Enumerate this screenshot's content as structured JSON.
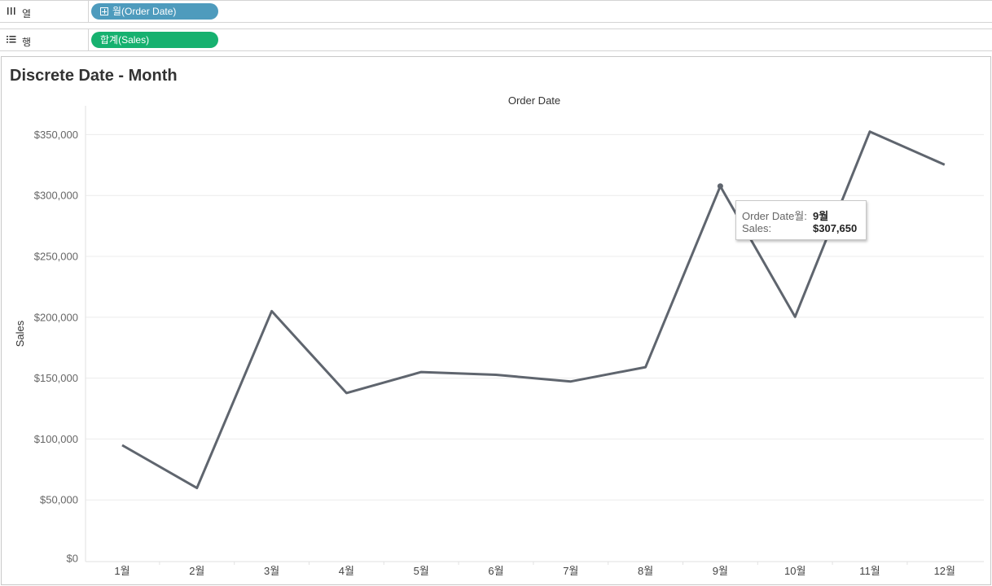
{
  "shelves": {
    "columns": {
      "label": "열",
      "icon": "columns-icon",
      "pill_text": "월(Order Date)",
      "pill_icon": "plus-box-icon",
      "pill_color": "#4e9bbd"
    },
    "rows": {
      "label": "행",
      "icon": "rows-icon",
      "pill_text": "합계(Sales)",
      "pill_color": "#16b16f"
    }
  },
  "colors": {
    "line": "#5f656e",
    "gridline": "#ececec",
    "axis_text": "#666666"
  },
  "tooltip": {
    "row1_label": "Order Date월:",
    "row1_value": "9월",
    "row2_label": "Sales:",
    "row2_value": "$307,650"
  },
  "chart_data": {
    "type": "line",
    "title": "Discrete Date - Month",
    "top_axis_label": "Order Date",
    "xlabel": "",
    "ylabel": "Sales",
    "categories": [
      "1월",
      "2월",
      "3월",
      "4월",
      "5월",
      "6월",
      "7월",
      "8월",
      "9월",
      "10월",
      "11월",
      "12월"
    ],
    "series": [
      {
        "values": [
          94925,
          59751,
          205005,
          137762,
          155028,
          152719,
          147238,
          159044,
          307650,
          200323,
          352461,
          325293
        ]
      }
    ],
    "ylim": [
      0,
      375000
    ],
    "yticks": [
      0,
      50000,
      100000,
      150000,
      200000,
      250000,
      300000,
      350000
    ],
    "ytick_labels": [
      "$0",
      "$50,000",
      "$100,000",
      "$150,000",
      "$200,000",
      "$250,000",
      "$300,000",
      "$350,000"
    ],
    "grid": true,
    "highlighted_category": "9월"
  }
}
